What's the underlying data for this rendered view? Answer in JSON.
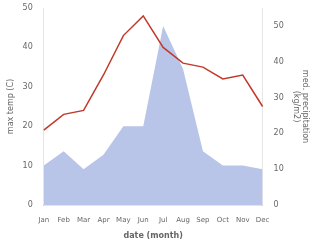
{
  "chart_data": {
    "type": "line",
    "categories": [
      "Jan",
      "Feb",
      "Mar",
      "Apr",
      "May",
      "Jun",
      "Jul",
      "Aug",
      "Sep",
      "Oct",
      "Nov",
      "Dec"
    ],
    "series": [
      {
        "type": "area",
        "color": "#b8c4e8",
        "axis": "y2",
        "values": [
          11,
          15,
          10,
          14,
          22,
          22,
          50,
          38,
          15,
          11,
          11,
          10
        ]
      },
      {
        "type": "line",
        "color": "#c0392b",
        "values": [
          19,
          23,
          24,
          33,
          43,
          48,
          40,
          36,
          35,
          32,
          33,
          25
        ]
      }
    ],
    "xlabel": "date (month)",
    "ylabel": "max temp (C)",
    "y2label": "med. precipitation\n(kg/m2)",
    "ylim": [
      0,
      50
    ],
    "yticks": [
      0,
      10,
      20,
      30,
      40,
      50
    ],
    "y2lim": [
      0,
      55
    ],
    "y2ticks": [
      0,
      10,
      20,
      30,
      40,
      50
    ],
    "grid": false
  }
}
